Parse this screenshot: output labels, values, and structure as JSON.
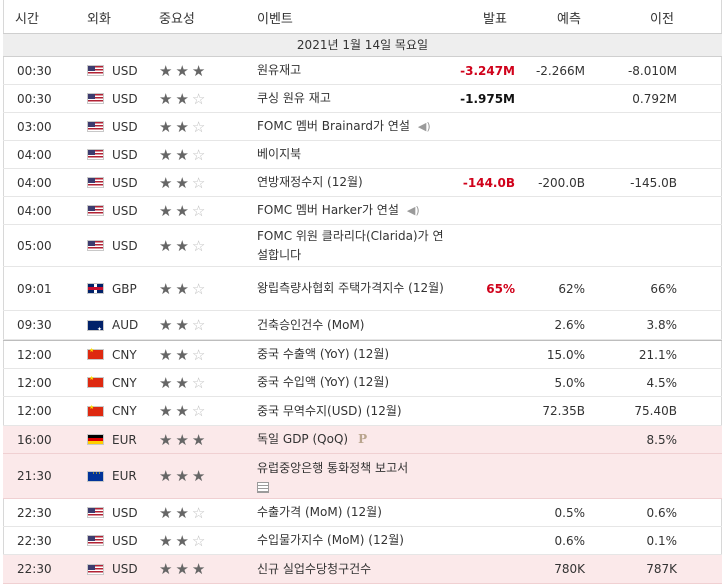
{
  "headers": {
    "time": "시간",
    "currency": "외화",
    "importance": "중요성",
    "event": "이벤트",
    "actual": "발표",
    "forecast": "예측",
    "previous": "이전"
  },
  "date_label": "2021년 1월 14일 목요일",
  "colors": {
    "actual_negative": "#d0021b",
    "highlight_row": "#fbe9ea",
    "star_on": "#666666",
    "star_off": "#bdbdbd"
  },
  "rows": [
    {
      "time": "00:30",
      "currency": "USD",
      "flag": "us-flag-icon",
      "stars": 3,
      "event": "원유재고",
      "actual": "-3.247M",
      "forecast": "-2.266M",
      "previous": "-8.010M"
    },
    {
      "time": "00:30",
      "currency": "USD",
      "flag": "us-flag-icon",
      "stars": 2,
      "event": "쿠싱 원유 재고",
      "actual": "-1.975M",
      "forecast": "",
      "previous": "0.792M"
    },
    {
      "time": "03:00",
      "currency": "USD",
      "flag": "us-flag-icon",
      "stars": 2,
      "event": "FOMC 멤버 Brainard가 연설",
      "actual": "",
      "forecast": "",
      "previous": ""
    },
    {
      "time": "04:00",
      "currency": "USD",
      "flag": "us-flag-icon",
      "stars": 2,
      "event": "베이지북",
      "actual": "",
      "forecast": "",
      "previous": ""
    },
    {
      "time": "04:00",
      "currency": "USD",
      "flag": "us-flag-icon",
      "stars": 2,
      "event": "연방재정수지 (12월)",
      "actual": "-144.0B",
      "forecast": "-200.0B",
      "previous": "-145.0B"
    },
    {
      "time": "04:00",
      "currency": "USD",
      "flag": "us-flag-icon",
      "stars": 2,
      "event": "FOMC 멤버 Harker가 연설",
      "actual": "",
      "forecast": "",
      "previous": ""
    },
    {
      "time": "05:00",
      "currency": "USD",
      "flag": "us-flag-icon",
      "stars": 2,
      "event": "FOMC 위원 클라리다(Clarida)가 연설합니다",
      "actual": "",
      "forecast": "",
      "previous": ""
    },
    {
      "time": "09:01",
      "currency": "GBP",
      "flag": "gb-flag-icon",
      "stars": 2,
      "event": "왕립측량사협회 주택가격지수 (12월)",
      "actual": "65%",
      "forecast": "62%",
      "previous": "66%"
    },
    {
      "time": "09:30",
      "currency": "AUD",
      "flag": "au-flag-icon",
      "stars": 2,
      "event": "건축승인건수 (MoM)",
      "actual": "",
      "forecast": "2.6%",
      "previous": "3.8%"
    },
    {
      "time": "12:00",
      "currency": "CNY",
      "flag": "cn-flag-icon",
      "stars": 2,
      "event": "중국 수출액 (YoY) (12월)",
      "actual": "",
      "forecast": "15.0%",
      "previous": "21.1%"
    },
    {
      "time": "12:00",
      "currency": "CNY",
      "flag": "cn-flag-icon",
      "stars": 2,
      "event": "중국 수입액 (YoY) (12월)",
      "actual": "",
      "forecast": "5.0%",
      "previous": "4.5%"
    },
    {
      "time": "12:00",
      "currency": "CNY",
      "flag": "cn-flag-icon",
      "stars": 2,
      "event": "중국 무역수지(USD) (12월)",
      "actual": "",
      "forecast": "72.35B",
      "previous": "75.40B"
    },
    {
      "time": "16:00",
      "currency": "EUR",
      "flag": "de-flag-icon",
      "stars": 3,
      "event": "독일 GDP (QoQ)",
      "actual": "",
      "forecast": "",
      "previous": "8.5%"
    },
    {
      "time": "21:30",
      "currency": "EUR",
      "flag": "eu-flag-icon",
      "stars": 3,
      "event": "유럽중앙은행 통화정책 보고서",
      "actual": "",
      "forecast": "",
      "previous": ""
    },
    {
      "time": "22:30",
      "currency": "USD",
      "flag": "us-flag-icon",
      "stars": 2,
      "event": "수출가격 (MoM) (12월)",
      "actual": "",
      "forecast": "0.5%",
      "previous": "0.6%"
    },
    {
      "time": "22:30",
      "currency": "USD",
      "flag": "us-flag-icon",
      "stars": 2,
      "event": "수입물가지수 (MoM) (12월)",
      "actual": "",
      "forecast": "0.6%",
      "previous": "0.1%"
    },
    {
      "time": "22:30",
      "currency": "USD",
      "flag": "us-flag-icon",
      "stars": 3,
      "event": "신규 실업수당청구건수",
      "actual": "",
      "forecast": "780K",
      "previous": "787K"
    }
  ],
  "badges": {
    "preliminary": "P"
  }
}
